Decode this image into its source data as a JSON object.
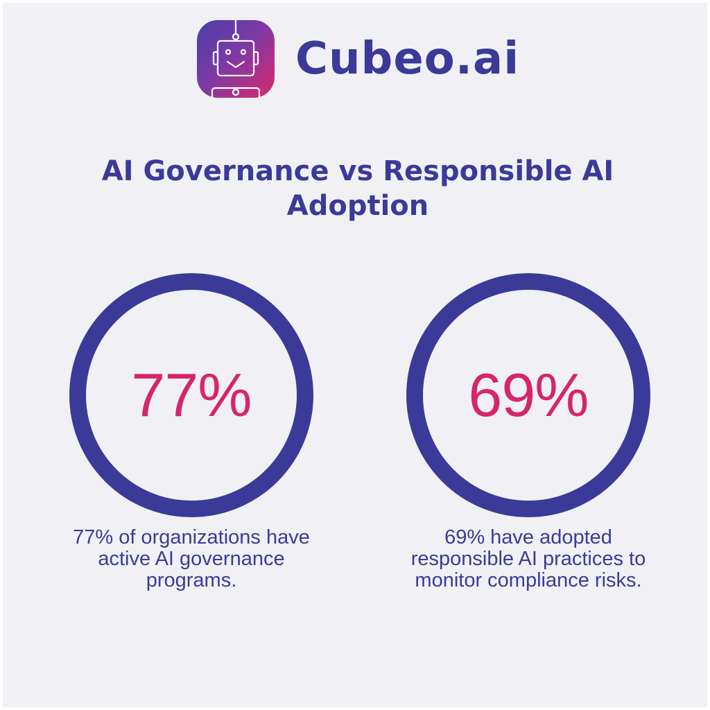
{
  "brand": {
    "name": "Cubeo.ai",
    "logo_icon": "robot-icon"
  },
  "headline": "AI Governance vs Responsible AI Adoption",
  "stats": [
    {
      "value": "77%",
      "caption": "77% of organizations have active AI governance programs."
    },
    {
      "value": "69%",
      "caption": "69% have adopted responsible AI practices to monitor compliance risks."
    }
  ],
  "colors": {
    "primary": "#3b3a99",
    "accent": "#d6256a",
    "background": "#f1f1f5"
  }
}
